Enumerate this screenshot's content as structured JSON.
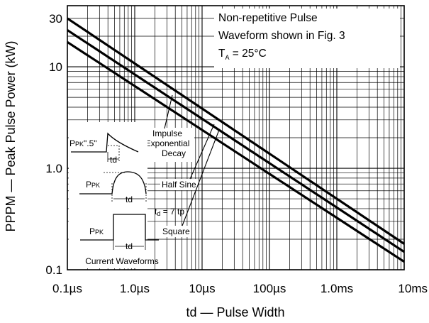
{
  "chart_data": {
    "type": "line",
    "x_scale": "log",
    "y_scale": "log",
    "xlim_seconds": [
      1e-07,
      0.01
    ],
    "ylim_kW": [
      0.1,
      40
    ],
    "x_tick_labels": [
      "0.1µs",
      "1.0µs",
      "10µs",
      "100µs",
      "1.0ms",
      "10ms"
    ],
    "y_tick_labels": [
      "30",
      "10",
      "1.0",
      "0.1"
    ],
    "y_tick_values": [
      30,
      10,
      1.0,
      0.1
    ],
    "xlabel": "td — Pulse Width",
    "ylabel": "PPPM — Peak Pulse Power (kW)",
    "grid": true,
    "note": {
      "line1": "Non-repetitive Pulse",
      "line2": "Waveform shown in Fig. 3",
      "ta_main": "T",
      "ta_sub": "A",
      "ta_rest": " = 25°C"
    },
    "series": [
      {
        "x": [
          1e-07,
          0.01
        ],
        "y": [
          30.0,
          0.18
        ]
      },
      {
        "x": [
          1e-07,
          0.01
        ],
        "y": [
          23.0,
          0.15
        ]
      },
      {
        "x": [
          1e-07,
          0.01
        ],
        "y": [
          17.5,
          0.12
        ]
      }
    ],
    "curve_labels": {
      "impulse": [
        "Impulse",
        "Exponential",
        "Decay"
      ],
      "half_sine": "Half Sine",
      "square": "Square"
    },
    "inset": {
      "ppk_main": "P",
      "ppk_sub": "PK",
      "ppk_half": "\".5\"",
      "td": "td",
      "td_eq": "t",
      "td_eq_sub": "d",
      "td_eq_rest": " = 7 tp",
      "caption": "Current Waveforms"
    }
  }
}
